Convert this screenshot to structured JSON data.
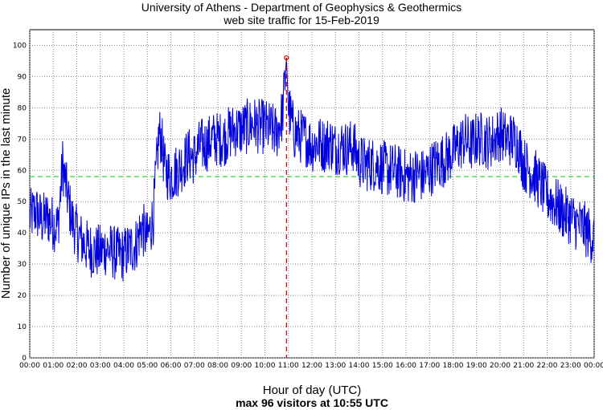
{
  "chart_data": {
    "type": "line",
    "title": "University of Athens - Department of Geophysics & Geothermics",
    "subtitle": "web site traffic for 15-Feb-2019",
    "xlabel": "Hour of day (UTC)",
    "ylabel": "Number of unique IPs in the last minute",
    "footer": "max 96 visitors at 10:55 UTC",
    "xlim": [
      0,
      24
    ],
    "ylim": [
      0,
      105
    ],
    "yticks": [
      0,
      10,
      20,
      30,
      40,
      50,
      60,
      70,
      80,
      90,
      100
    ],
    "xtick_labels": [
      "00:00",
      "01:00",
      "02:00",
      "03:00",
      "04:00",
      "05:00",
      "06:00",
      "07:00",
      "08:00",
      "09:00",
      "10:00",
      "11:00",
      "12:00",
      "13:00",
      "14:00",
      "15:00",
      "16:00",
      "17:00",
      "18:00",
      "19:00",
      "20:00",
      "21:00",
      "22:00",
      "23:00",
      "00:00"
    ],
    "grid": true,
    "mean_line": {
      "value": 58,
      "color": "#00cc00",
      "style": "dashed"
    },
    "max_marker": {
      "x_hour": 10.917,
      "value": 96,
      "color": "#cc0000"
    },
    "series": [
      {
        "color": "#0000dd",
        "x": [
          0.0,
          0.25,
          0.5,
          0.75,
          1.0,
          1.2,
          1.4,
          1.6,
          1.8,
          2.0,
          2.25,
          2.5,
          2.75,
          3.0,
          3.25,
          3.5,
          3.75,
          4.0,
          4.25,
          4.5,
          4.75,
          5.0,
          5.25,
          5.4,
          5.5,
          5.6,
          5.75,
          6.0,
          6.25,
          6.5,
          6.75,
          7.0,
          7.25,
          7.5,
          7.75,
          8.0,
          8.25,
          8.5,
          8.75,
          9.0,
          9.25,
          9.5,
          9.75,
          10.0,
          10.25,
          10.5,
          10.75,
          10.917,
          11.0,
          11.25,
          11.5,
          11.75,
          12.0,
          12.25,
          12.5,
          12.75,
          13.0,
          13.25,
          13.5,
          13.75,
          14.0,
          14.25,
          14.5,
          14.75,
          15.0,
          15.25,
          15.5,
          15.75,
          16.0,
          16.25,
          16.5,
          16.75,
          17.0,
          17.25,
          17.5,
          17.75,
          18.0,
          18.25,
          18.5,
          18.75,
          19.0,
          19.25,
          19.5,
          19.75,
          20.0,
          20.25,
          20.5,
          20.75,
          21.0,
          21.25,
          21.5,
          21.75,
          22.0,
          22.25,
          22.5,
          22.75,
          23.0,
          23.25,
          23.5,
          23.75,
          24.0
        ],
        "values": [
          45,
          47,
          44,
          45,
          43,
          42,
          62,
          52,
          44,
          40,
          37,
          35,
          34,
          34,
          35,
          34,
          33,
          33,
          35,
          36,
          42,
          38,
          45,
          62,
          72,
          70,
          60,
          58,
          60,
          62,
          65,
          64,
          68,
          68,
          70,
          70,
          70,
          72,
          73,
          73,
          74,
          75,
          74,
          74,
          73,
          72,
          78,
          96,
          80,
          72,
          71,
          70,
          68,
          69,
          68,
          69,
          67,
          68,
          67,
          68,
          63,
          62,
          62,
          62,
          61,
          60,
          60,
          59,
          58,
          58,
          59,
          58,
          60,
          62,
          63,
          64,
          66,
          68,
          70,
          68,
          70,
          70,
          69,
          70,
          72,
          70,
          70,
          69,
          62,
          60,
          58,
          55,
          52,
          50,
          48,
          46,
          45,
          43,
          42,
          40,
          38
        ]
      }
    ]
  }
}
